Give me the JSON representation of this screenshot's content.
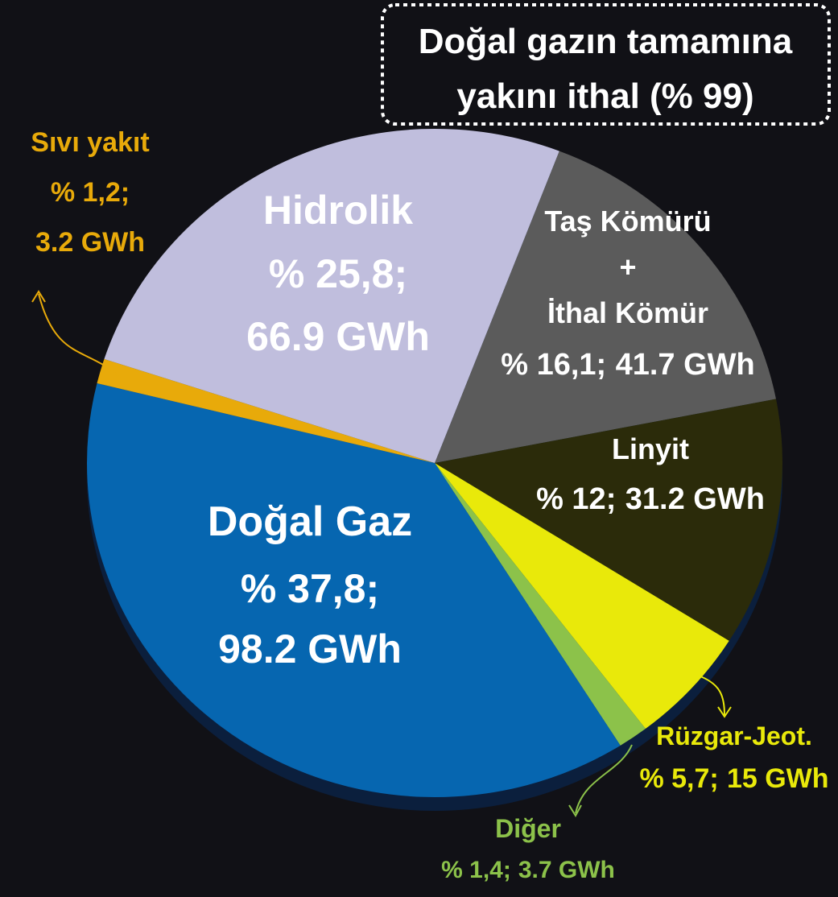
{
  "chart_data": {
    "type": "pie",
    "annotations": [
      "Doğal gazın tamamına",
      "yakını ithal (% 99)"
    ],
    "categories": [
      "Taş Kömürü\n+\nİthal Kömür",
      "Linyit",
      "Rüzgar-Jeot.",
      "Diğer",
      "Doğal Gaz",
      "Sıvı yakıt",
      "Hidrolik"
    ],
    "values": [
      16.1,
      12,
      5.7,
      1.4,
      37.8,
      1.2,
      25.8
    ],
    "value_labels": [
      "% 16,1;",
      "% 12;",
      "% 5,7;",
      "% 1,4;",
      "% 37,8;",
      "% 1,2;",
      "% 25,8;"
    ],
    "gwh": [
      41.7,
      31.2,
      15,
      3.7,
      98.2,
      3.2,
      66.9
    ],
    "gwh_labels": [
      "41.7 GWh",
      "31.2 GWh",
      "15 GWh",
      "3.7 GWh",
      "98.2 GWh",
      "3.2 GWh",
      "66.9 GWh"
    ],
    "colors": [
      "#5b5b5b",
      "#2b2b0a",
      "#e9e90a",
      "#8cc24a",
      "#0666b0",
      "#e8aa0a",
      "#c0bedd"
    ]
  }
}
